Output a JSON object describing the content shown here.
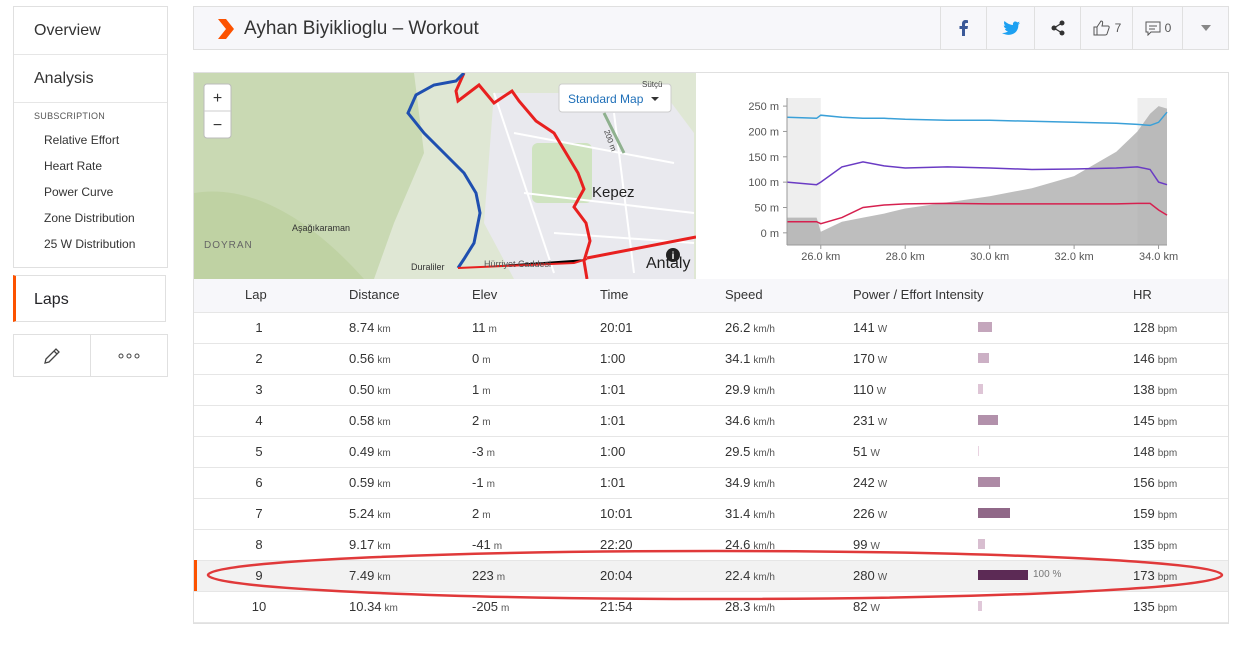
{
  "sidebar": {
    "items": [
      "Overview",
      "Analysis"
    ],
    "subscription_label": "SUBSCRIPTION",
    "sub_items": [
      "Relative Effort",
      "Heart Rate",
      "Power Curve",
      "Zone Distribution",
      "25 W Distribution"
    ],
    "laps": "Laps"
  },
  "header": {
    "title": "Ayhan Biyiklioglu – Workout",
    "kudos": "7",
    "comments": "0"
  },
  "map": {
    "button": "Standard Map",
    "labels": {
      "kepez": "Kepez",
      "sutcu": "Sütçü",
      "scale": "200 m",
      "asagikaraman": "Aşağıkaraman",
      "doyran": "DOYRAN",
      "duraliler": "Duraliler",
      "antalya": "Antaly",
      "street": "Hürriyet Caddesi"
    }
  },
  "chart": {
    "xlim": [
      25.2,
      34.2
    ],
    "ylim": [
      -24,
      266
    ],
    "xticks": [
      {
        "value": 26,
        "label": "26.0 km"
      },
      {
        "value": 28,
        "label": "28.0 km"
      },
      {
        "value": 30,
        "label": "30.0 km"
      },
      {
        "value": 32,
        "label": "32.0 km"
      },
      {
        "value": 34,
        "label": "34.0 km"
      }
    ],
    "yticks": [
      {
        "value": 0,
        "label": "0 m"
      },
      {
        "value": 50,
        "label": "50 m"
      },
      {
        "value": 100,
        "label": "100 m"
      },
      {
        "value": 150,
        "label": "150 m"
      },
      {
        "value": 200,
        "label": "200 m"
      },
      {
        "value": 250,
        "label": "250 m"
      }
    ],
    "x": [
      25.2,
      25.9,
      26.0,
      26.5,
      27,
      27.5,
      28,
      29,
      30,
      31,
      32,
      33,
      33.5,
      33.8,
      34.0,
      34.2
    ],
    "series": [
      {
        "color": "#a8a8a8",
        "fill": true,
        "values": [
          30,
          30,
          2,
          22,
          30,
          38,
          48,
          60,
          72,
          88,
          112,
          160,
          200,
          235,
          250,
          245
        ]
      },
      {
        "color": "#3aa0d8",
        "values": [
          228,
          226,
          232,
          228,
          226,
          226,
          224,
          222,
          222,
          220,
          218,
          216,
          214,
          212,
          218,
          238
        ]
      },
      {
        "color": "#6a3bc4",
        "values": [
          100,
          95,
          100,
          130,
          140,
          132,
          128,
          130,
          128,
          125,
          126,
          128,
          130,
          125,
          100,
          95
        ]
      },
      {
        "color": "#d6204f",
        "values": [
          22,
          22,
          18,
          30,
          50,
          55,
          57,
          58,
          57,
          57,
          57,
          57,
          58,
          58,
          45,
          35
        ]
      }
    ]
  },
  "table": {
    "headers": [
      "Lap",
      "Distance",
      "Elev",
      "Time",
      "Speed",
      "Power / Effort Intensity",
      "HR"
    ],
    "rows": [
      {
        "lap": "1",
        "distance": "8.74",
        "distance_unit": "km",
        "elev": "11",
        "elev_unit": "m",
        "time": "20:01",
        "speed": "26.2",
        "speed_unit": "km/h",
        "power": "141",
        "power_unit": "W",
        "intensity": 28,
        "hr": "128",
        "hr_unit": "bpm"
      },
      {
        "lap": "2",
        "distance": "0.56",
        "distance_unit": "km",
        "elev": "0",
        "elev_unit": "m",
        "time": "1:00",
        "speed": "34.1",
        "speed_unit": "km/h",
        "power": "170",
        "power_unit": "W",
        "intensity": 22,
        "hr": "146",
        "hr_unit": "bpm"
      },
      {
        "lap": "3",
        "distance": "0.50",
        "distance_unit": "km",
        "elev": "1",
        "elev_unit": "m",
        "time": "1:01",
        "speed": "29.9",
        "speed_unit": "km/h",
        "power": "110",
        "power_unit": "W",
        "intensity": 10,
        "hr": "138",
        "hr_unit": "bpm"
      },
      {
        "lap": "4",
        "distance": "0.58",
        "distance_unit": "km",
        "elev": "2",
        "elev_unit": "m",
        "time": "1:01",
        "speed": "34.6",
        "speed_unit": "km/h",
        "power": "231",
        "power_unit": "W",
        "intensity": 40,
        "hr": "145",
        "hr_unit": "bpm"
      },
      {
        "lap": "5",
        "distance": "0.49",
        "distance_unit": "km",
        "elev": "-3",
        "elev_unit": "m",
        "time": "1:00",
        "speed": "29.5",
        "speed_unit": "km/h",
        "power": "51",
        "power_unit": "W",
        "intensity": 2,
        "hr": "148",
        "hr_unit": "bpm"
      },
      {
        "lap": "6",
        "distance": "0.59",
        "distance_unit": "km",
        "elev": "-1",
        "elev_unit": "m",
        "time": "1:01",
        "speed": "34.9",
        "speed_unit": "km/h",
        "power": "242",
        "power_unit": "W",
        "intensity": 44,
        "hr": "156",
        "hr_unit": "bpm"
      },
      {
        "lap": "7",
        "distance": "5.24",
        "distance_unit": "km",
        "elev": "2",
        "elev_unit": "m",
        "time": "10:01",
        "speed": "31.4",
        "speed_unit": "km/h",
        "power": "226",
        "power_unit": "W",
        "intensity": 64,
        "hr": "159",
        "hr_unit": "bpm"
      },
      {
        "lap": "8",
        "distance": "9.17",
        "distance_unit": "km",
        "elev": "-41",
        "elev_unit": "m",
        "time": "22:20",
        "speed": "24.6",
        "speed_unit": "km/h",
        "power": "99",
        "power_unit": "W",
        "intensity": 14,
        "hr": "135",
        "hr_unit": "bpm"
      },
      {
        "lap": "9",
        "distance": "7.49",
        "distance_unit": "km",
        "elev": "223",
        "elev_unit": "m",
        "time": "20:04",
        "speed": "22.4",
        "speed_unit": "km/h",
        "power": "280",
        "power_unit": "W",
        "intensity": 100,
        "intensity_label": "100 %",
        "hr": "173",
        "hr_unit": "bpm"
      },
      {
        "lap": "10",
        "distance": "10.34",
        "distance_unit": "km",
        "elev": "-205",
        "elev_unit": "m",
        "time": "21:54",
        "speed": "28.3",
        "speed_unit": "km/h",
        "power": "82",
        "power_unit": "W",
        "intensity": 8,
        "hr": "135",
        "hr_unit": "bpm"
      }
    ]
  }
}
